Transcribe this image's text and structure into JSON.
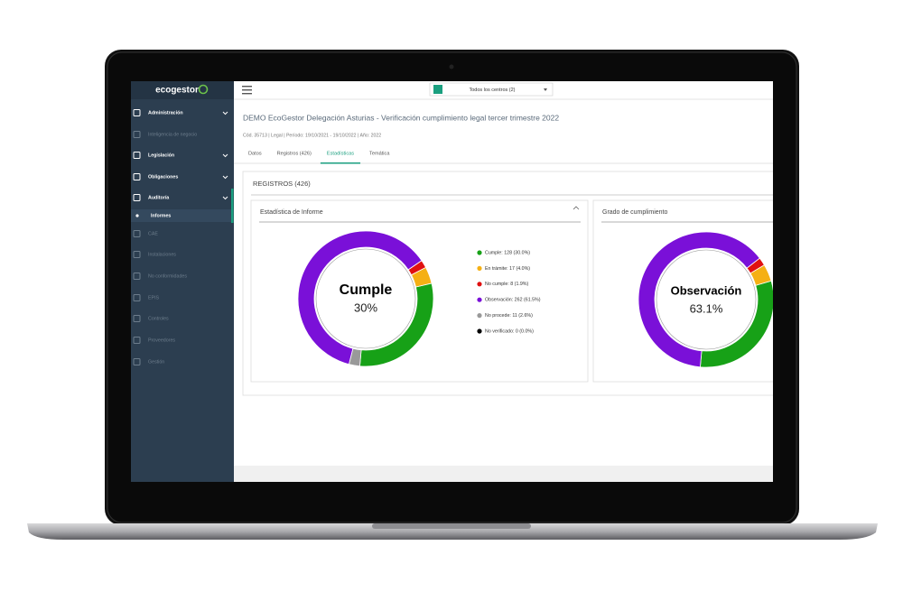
{
  "logo": "ecogestor",
  "center_selector": "Todos los centros (2)",
  "sidebar": [
    {
      "label": "Administración",
      "disabled": false,
      "expandable": true
    },
    {
      "label": "Inteligencia de negocio",
      "disabled": true,
      "expandable": false
    },
    {
      "label": "Legislación",
      "disabled": false,
      "expandable": true
    },
    {
      "label": "Obligaciones",
      "disabled": false,
      "expandable": true
    },
    {
      "label": "Auditoría",
      "disabled": false,
      "expandable": true
    },
    {
      "label": "Informes",
      "disabled": false,
      "expandable": false,
      "selected": true
    },
    {
      "label": "CAE",
      "disabled": true,
      "expandable": false
    },
    {
      "label": "Instalaciones",
      "disabled": true,
      "expandable": false
    },
    {
      "label": "No conformidades",
      "disabled": true,
      "expandable": false
    },
    {
      "label": "EPIS",
      "disabled": true,
      "expandable": false
    },
    {
      "label": "Controles",
      "disabled": true,
      "expandable": false
    },
    {
      "label": "Proveedores",
      "disabled": true,
      "expandable": false
    },
    {
      "label": "Gestión",
      "disabled": true,
      "expandable": false
    }
  ],
  "page": {
    "title": "DEMO EcoGestor Delegación Asturias - Verificación cumplimiento legal tercer trimestre 2022",
    "subtitle": "Cód. 35713 | Legal | Período: 19/10/2021 - 19/10/2022 | Año: 2022",
    "tabs": [
      "Datos",
      "Registros (426)",
      "Estadísticas",
      "Temática"
    ],
    "active_tab": 2,
    "section_title": "REGISTROS (426)"
  },
  "chart_data": [
    {
      "type": "pie",
      "title": "Estadística de Informe",
      "center_label": "Cumple",
      "center_value": "30%",
      "categories": [
        "Cumple",
        "En trámite",
        "No cumple",
        "Observación",
        "No procede",
        "No verificado"
      ],
      "values": [
        128,
        17,
        8,
        262,
        11,
        0
      ],
      "value_labels": [
        "Cumple: 128 (30.0%)",
        "En trámite: 17 (4.0%)",
        "No cumple: 8 (1.9%)",
        "Observación: 262 (61.5%)",
        "No procede: 11 (2.6%)",
        "No verificado: 0 (0.0%)"
      ],
      "colors": [
        "#17a117",
        "#f5b014",
        "#e01010",
        "#7a10d8",
        "#999999",
        "#000000"
      ],
      "legend": true
    },
    {
      "type": "pie",
      "title": "Grado de cumplimiento",
      "center_label": "Observación",
      "center_value": "63.1%",
      "categories": [
        "Cumple",
        "En trámite",
        "No cumple",
        "Observación",
        "No verificado"
      ],
      "values": [
        128,
        17,
        8,
        262,
        0
      ],
      "colors": [
        "#17a117",
        "#f5b014",
        "#e01010",
        "#7a10d8",
        "#000000"
      ],
      "legend": false
    }
  ]
}
